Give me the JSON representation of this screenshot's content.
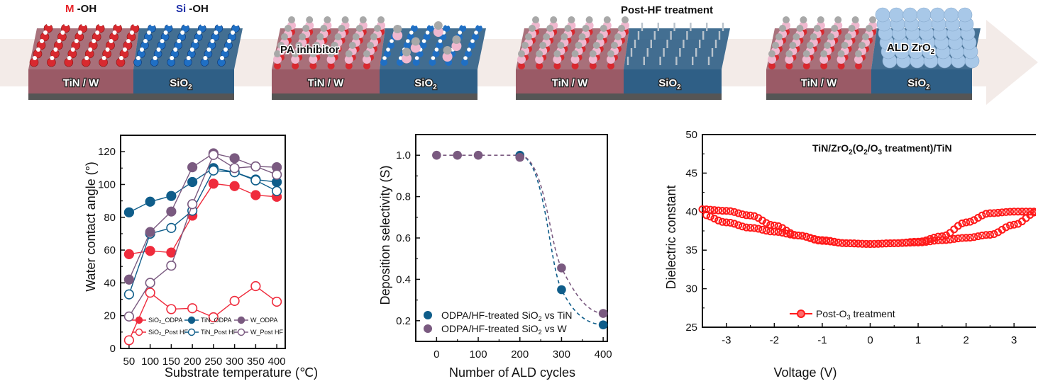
{
  "scheme": {
    "panels": [
      {
        "id": "initial",
        "left_label": "TiN / W",
        "right_label": "SiO",
        "right_label_sub": "2",
        "top_labels": [
          {
            "prefix": "M",
            "prefix_color": "#e8272d",
            "suffix": " -OH"
          },
          {
            "prefix": "Si",
            "prefix_color": "#1e2fa8",
            "suffix": " -OH"
          }
        ],
        "left_molecules": "M-OH",
        "right_molecules": "Si-OH"
      },
      {
        "id": "inhibitor",
        "left_label": "TiN / W",
        "right_label": "SiO",
        "right_label_sub": "2",
        "overlay_label": "PA inhibitor",
        "left_molecules": "PA-dense",
        "right_molecules": "PA-sparse"
      },
      {
        "id": "post-hf",
        "left_label": "TiN / W",
        "right_label": "SiO",
        "right_label_sub": "2",
        "overlay_label": "Post-HF treatment",
        "left_molecules": "PA-dense",
        "right_molecules": "bare"
      },
      {
        "id": "ald",
        "left_label": "TiN / W",
        "right_label": "SiO",
        "right_label_sub": "2",
        "overlay_label": "ALD ZrO",
        "overlay_label_sub": "2",
        "left_molecules": "PA-dense",
        "right_molecules": "ZrO2-film"
      }
    ],
    "colors": {
      "metal_block": "#9a5a66",
      "oxide_block": "#2f5f86",
      "base": "#555555",
      "arrow_band": "#f3ebe8",
      "m_oh": "#d8292f",
      "si_oh": "#1f6fc4",
      "pa_pink": "#f0b8cf",
      "pa_gray": "#a8a8a8",
      "zro2": "#a8c8e8"
    }
  },
  "chart_data": [
    {
      "type": "line",
      "title": "",
      "xlabel": "Substrate temperature (℃)",
      "ylabel": "Water contact angle (°)",
      "x": [
        50,
        100,
        150,
        200,
        250,
        300,
        350,
        400
      ],
      "xlim": [
        30,
        420
      ],
      "ylim": [
        0,
        130
      ],
      "xticks": [
        50,
        100,
        150,
        200,
        250,
        300,
        350,
        400
      ],
      "yticks": [
        0,
        20,
        40,
        60,
        80,
        100,
        120
      ],
      "legend": "bottom-inside",
      "series": [
        {
          "name": "SiO₂_ODPA",
          "color": "#ef2b3c",
          "filled": true,
          "values": [
            57.5,
            59.5,
            58.5,
            81,
            100.5,
            99,
            93.5,
            92.5
          ]
        },
        {
          "name": "SiO₂_Post HF",
          "color": "#ef2b3c",
          "filled": false,
          "values": [
            5,
            34,
            24,
            24.5,
            19,
            29,
            38,
            28.5
          ]
        },
        {
          "name": "TiN_ODPA",
          "color": "#0f5d8a",
          "filled": true,
          "values": [
            83,
            89.5,
            93,
            101.5,
            110,
            107.5,
            103,
            101.5
          ]
        },
        {
          "name": "TiN_Post HF",
          "color": "#0f5d8a",
          "filled": false,
          "values": [
            33,
            70,
            73.5,
            84,
            108.5,
            107.5,
            102.5,
            96
          ]
        },
        {
          "name": "W_ODPA",
          "color": "#7a5a80",
          "filled": true,
          "values": [
            42,
            71,
            83.5,
            110.5,
            119,
            116,
            111,
            110.5
          ]
        },
        {
          "name": "W_Post HF",
          "color": "#7a5a80",
          "filled": false,
          "values": [
            19.5,
            40,
            50.5,
            88,
            118,
            110,
            111,
            106
          ]
        }
      ]
    },
    {
      "type": "scatter",
      "title": "",
      "xlabel": "Number of ALD cycles",
      "ylabel": "Deposition selectivity (S)",
      "xlim": [
        -50,
        410
      ],
      "ylim": [
        0.1,
        1.1
      ],
      "xticks": [
        0,
        100,
        200,
        300,
        400
      ],
      "yticks": [
        0.2,
        0.4,
        0.6,
        0.8,
        1.0
      ],
      "ytick_labels": [
        "0.2",
        "0.4",
        "0.6",
        "0.8",
        "1.0"
      ],
      "legend": "bottom-left",
      "series": [
        {
          "name": "ODPA/HF-treated SiO₂ vs TiN",
          "color": "#0f5d8a",
          "x": [
            200,
            300,
            400
          ],
          "values": [
            1.0,
            0.35,
            0.18
          ],
          "fit": "dashed"
        },
        {
          "name": "ODPA/HF-treated SiO₂ vs W",
          "color": "#7a5a80",
          "x": [
            0,
            50,
            100,
            200,
            300,
            400
          ],
          "values": [
            1.0,
            1.0,
            1.0,
            0.99,
            0.455,
            0.235
          ],
          "fit": "dashed"
        }
      ]
    },
    {
      "type": "scatter",
      "title": "TiN/ZrO₂(O₂/O₃ treatment)/TiN",
      "xlabel": "Voltage (V)",
      "ylabel": "Dielectric constant",
      "xlim": [
        -3.5,
        3.5
      ],
      "ylim": [
        25,
        50
      ],
      "xticks": [
        -3,
        -2,
        -1,
        0,
        1,
        2,
        3
      ],
      "yticks": [
        25,
        30,
        35,
        40,
        45,
        50
      ],
      "legend": "bottom-right",
      "series": [
        {
          "name": "Post-O₃ treatment",
          "color": "#ff1a1a",
          "marker": "open-circle",
          "sweep_forward": {
            "x": [
              -3.5,
              -3.0,
              -2.5,
              -2.0,
              -1.5,
              -1.0,
              -0.5,
              0.0,
              0.5,
              1.0,
              1.5,
              2.0,
              2.5,
              3.0,
              3.5
            ],
            "values": [
              40.3,
              40.1,
              39.5,
              38.2,
              36.9,
              36.2,
              35.9,
              35.8,
              35.9,
              36.1,
              36.8,
              38.6,
              39.8,
              40.0,
              40.0
            ]
          },
          "sweep_reverse": {
            "x": [
              3.5,
              3.0,
              2.5,
              2.0,
              1.5,
              1.0,
              0.5,
              0.0,
              -0.5,
              -1.0,
              -1.5,
              -2.0,
              -2.5,
              -3.0,
              -3.5
            ],
            "values": [
              40.0,
              38.3,
              37.0,
              36.6,
              36.3,
              36.0,
              35.9,
              35.8,
              35.9,
              36.3,
              36.9,
              37.4,
              37.9,
              38.6,
              39.6
            ]
          }
        }
      ]
    }
  ],
  "charts_text": {
    "c1": {
      "xlabel": "Substrate temperature (℃)",
      "ylabel": "Water contact angle (°)"
    },
    "c2": {
      "xlabel": "Number of ALD cycles",
      "ylabel": "Deposition selectivity (S)"
    },
    "c3": {
      "xlabel": "Voltage (V)",
      "ylabel": "Dielectric constant"
    }
  }
}
